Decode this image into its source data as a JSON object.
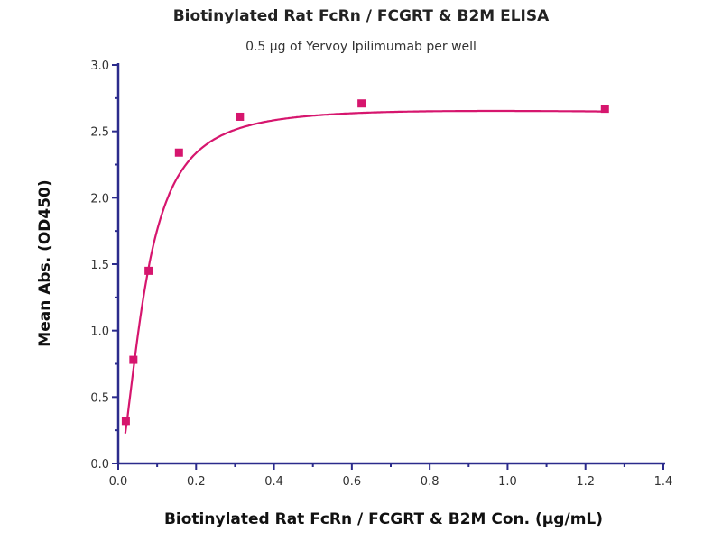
{
  "chart_data": {
    "type": "scatter",
    "title": "Biotinylated Rat FcRn / FCGRT & B2M ELISA",
    "subtitle": "0.5 µg of Yervoy Ipilimumab per well",
    "xlabel": "Biotinylated Rat FcRn / FCGRT & B2M Con. (µg/mL)",
    "ylabel": "Mean Abs. (OD450)",
    "xlim": [
      0,
      1.4
    ],
    "ylim": [
      0,
      3.0
    ],
    "xticks": [
      "0.0",
      "0.2",
      "0.4",
      "0.6",
      "0.8",
      "1.0",
      "1.2",
      "1.4"
    ],
    "yticks": [
      "0.0",
      "0.5",
      "1.0",
      "1.5",
      "2.0",
      "2.5",
      "3.0"
    ],
    "grid": false,
    "fit_curve": true,
    "series": [
      {
        "x": [
          0.0195,
          0.039,
          0.078,
          0.156,
          0.3125,
          0.625,
          1.25
        ],
        "y": [
          0.32,
          0.78,
          1.45,
          2.34,
          2.61,
          2.71,
          2.67
        ]
      }
    ],
    "colors": {
      "series": "#d6166e",
      "axis": "#2b2b8c"
    }
  }
}
